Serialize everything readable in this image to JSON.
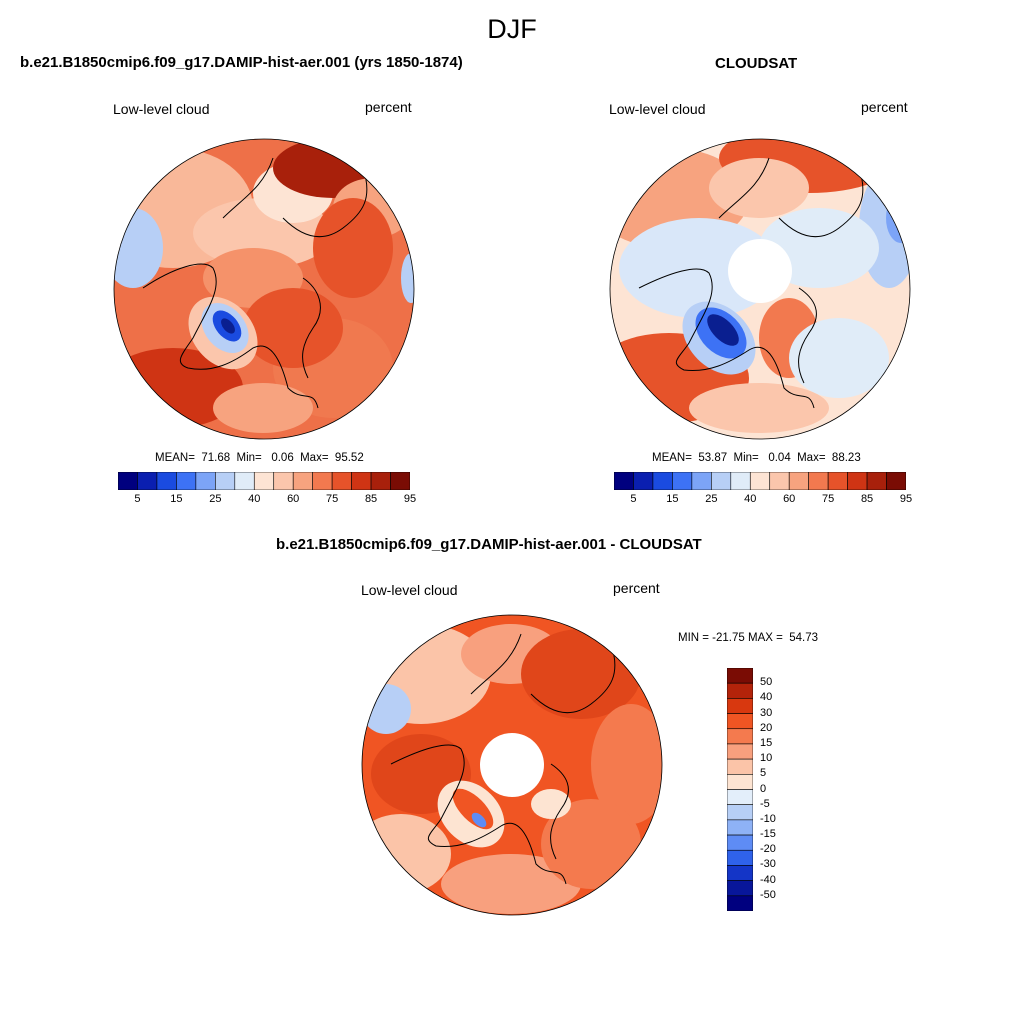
{
  "season": "DJF",
  "panels": [
    {
      "title": "b.e21.B1850cmip6.f09_g17.DAMIP-hist-aer.001 (yrs 1850-1874)",
      "variable": "Low-level cloud",
      "units": "percent",
      "stats": "MEAN=  71.68  Min=   0.06  Max=  95.52",
      "pole_hole": false
    },
    {
      "title": "CLOUDSAT",
      "variable": "Low-level cloud",
      "units": "percent",
      "stats": "MEAN=  53.87  Min=   0.04  Max=  88.23",
      "pole_hole": true
    },
    {
      "title": "b.e21.B1850cmip6.f09_g17.DAMIP-hist-aer.001 - CLOUDSAT",
      "variable": "Low-level cloud",
      "units": "percent",
      "stats": "MIN = -21.75 MAX =  54.73",
      "pole_hole": true
    }
  ],
  "colorbar_abs": {
    "labels": [
      "5",
      "15",
      "25",
      "40",
      "60",
      "75",
      "85",
      "95"
    ],
    "colors": [
      "#00007f",
      "#0a1fb0",
      "#1a4be0",
      "#3d72f5",
      "#7ca4f7",
      "#b7cff6",
      "#e0ecf8",
      "#fde4d4",
      "#fbc6ac",
      "#f7a37f",
      "#f2794f",
      "#e6532a",
      "#cf3414",
      "#a8200b",
      "#7a0c04"
    ]
  },
  "colorbar_diff": {
    "labels": [
      "50",
      "40",
      "30",
      "20",
      "15",
      "10",
      "5",
      "0",
      "-5",
      "-10",
      "-15",
      "-20",
      "-30",
      "-40",
      "-50"
    ],
    "colors": [
      "#7a0c04",
      "#b3230a",
      "#d8380f",
      "#f05523",
      "#f47a4e",
      "#f8a07e",
      "#fbc4a8",
      "#fde4d2",
      "#e3eefa",
      "#b7cff6",
      "#8eb2f6",
      "#5e8cf5",
      "#2f62ea",
      "#1435c7",
      "#08169a",
      "#00007f"
    ]
  }
}
